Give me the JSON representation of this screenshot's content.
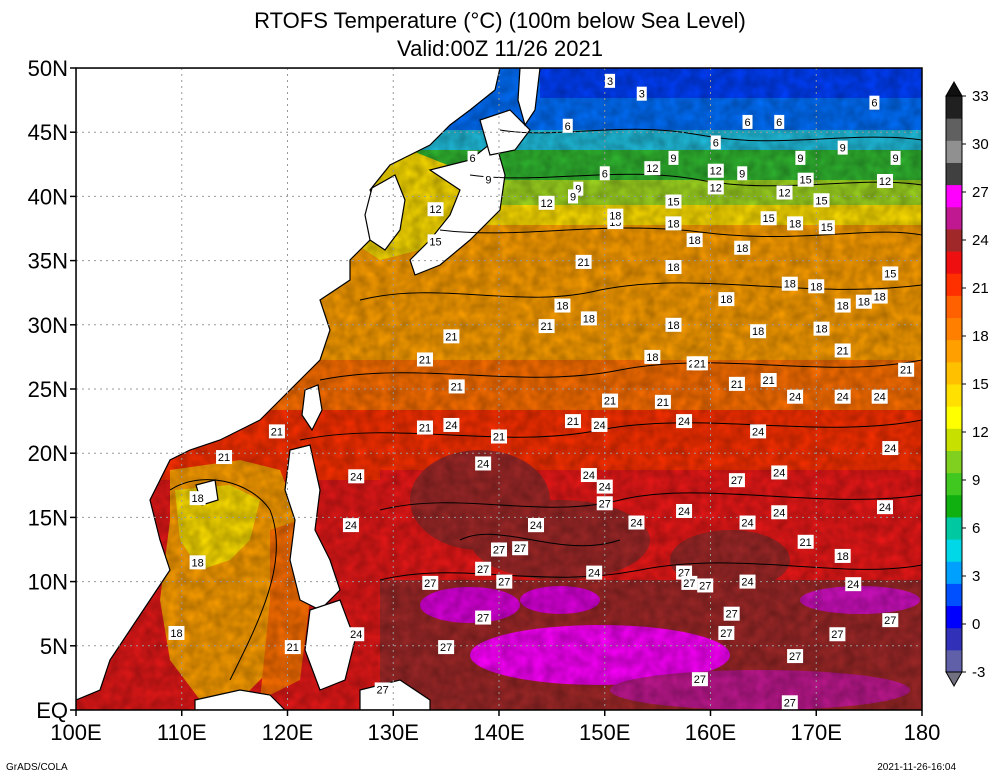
{
  "title": {
    "line1": "RTOFS Temperature (°C) (100m below Sea Level)",
    "line2": "Valid:00Z 11/26 2021"
  },
  "footer": {
    "left": "GrADS/COLA",
    "right": "2021-11-26-16:04"
  },
  "map": {
    "lat_range": [
      0,
      50
    ],
    "lon_range": [
      100,
      180
    ],
    "lat_ticks": [
      "EQ",
      "5N",
      "10N",
      "15N",
      "20N",
      "25N",
      "30N",
      "35N",
      "40N",
      "45N",
      "50N"
    ],
    "lon_ticks": [
      "100E",
      "110E",
      "120E",
      "130E",
      "140E",
      "150E",
      "160E",
      "170E",
      "180"
    ],
    "grid": true,
    "land_color": "#ffffff"
  },
  "colorbar": {
    "labels": [
      "-3",
      "0",
      "3",
      "6",
      "9",
      "12",
      "15",
      "18",
      "21",
      "24",
      "27",
      "30",
      "33"
    ],
    "colors": [
      "#6060a8",
      "#3030b8",
      "#0000ff",
      "#0050ff",
      "#00a0ff",
      "#00d8e8",
      "#00c8a0",
      "#10b010",
      "#40c820",
      "#80d020",
      "#c8e000",
      "#ffff00",
      "#ffe000",
      "#ffc000",
      "#ffa000",
      "#ff8000",
      "#ff6000",
      "#ff3000",
      "#ee1010",
      "#a02828",
      "#c01890",
      "#ff00ff",
      "#404040",
      "#909090",
      "#606060",
      "#202020"
    ]
  },
  "contour_labels": [
    {
      "text": "3",
      "lon": 150.5,
      "lat": 49.0
    },
    {
      "text": "3",
      "lon": 153.5,
      "lat": 48.0
    },
    {
      "text": "6",
      "lon": 146.5,
      "lat": 45.5
    },
    {
      "text": "6",
      "lon": 160.5,
      "lat": 44.2
    },
    {
      "text": "6",
      "lon": 163.5,
      "lat": 45.8
    },
    {
      "text": "6",
      "lon": 166.5,
      "lat": 45.8
    },
    {
      "text": "6",
      "lon": 175.5,
      "lat": 47.3
    },
    {
      "text": "6",
      "lon": 137.5,
      "lat": 43.0
    },
    {
      "text": "6",
      "lon": 150.0,
      "lat": 41.8
    },
    {
      "text": "9",
      "lon": 139.0,
      "lat": 41.3
    },
    {
      "text": "9",
      "lon": 156.5,
      "lat": 43.0
    },
    {
      "text": "9",
      "lon": 163.0,
      "lat": 41.8
    },
    {
      "text": "9",
      "lon": 168.5,
      "lat": 43.0
    },
    {
      "text": "9",
      "lon": 172.5,
      "lat": 43.8
    },
    {
      "text": "9",
      "lon": 177.5,
      "lat": 43.0
    },
    {
      "text": "9",
      "lon": 147.5,
      "lat": 40.6
    },
    {
      "text": "9",
      "lon": 147.0,
      "lat": 40.0
    },
    {
      "text": "12",
      "lon": 134.0,
      "lat": 39.0
    },
    {
      "text": "12",
      "lon": 144.5,
      "lat": 39.5
    },
    {
      "text": "12",
      "lon": 154.5,
      "lat": 42.2
    },
    {
      "text": "12",
      "lon": 160.5,
      "lat": 42.0
    },
    {
      "text": "12",
      "lon": 160.5,
      "lat": 40.7
    },
    {
      "text": "12",
      "lon": 167.0,
      "lat": 40.3
    },
    {
      "text": "12",
      "lon": 176.5,
      "lat": 41.2
    },
    {
      "text": "15",
      "lon": 134.0,
      "lat": 36.5
    },
    {
      "text": "15",
      "lon": 151.0,
      "lat": 38.0
    },
    {
      "text": "15",
      "lon": 156.5,
      "lat": 39.6
    },
    {
      "text": "15",
      "lon": 165.5,
      "lat": 38.3
    },
    {
      "text": "15",
      "lon": 169.0,
      "lat": 41.3
    },
    {
      "text": "15",
      "lon": 170.5,
      "lat": 39.7
    },
    {
      "text": "15",
      "lon": 171.0,
      "lat": 37.6
    },
    {
      "text": "15",
      "lon": 177.0,
      "lat": 34.0
    },
    {
      "text": "18",
      "lon": 151.0,
      "lat": 38.5
    },
    {
      "text": "18",
      "lon": 156.5,
      "lat": 37.9
    },
    {
      "text": "18",
      "lon": 158.5,
      "lat": 36.6
    },
    {
      "text": "18",
      "lon": 163.0,
      "lat": 36.0
    },
    {
      "text": "18",
      "lon": 168.0,
      "lat": 37.9
    },
    {
      "text": "18",
      "lon": 156.5,
      "lat": 34.5
    },
    {
      "text": "18",
      "lon": 167.5,
      "lat": 33.2
    },
    {
      "text": "18",
      "lon": 170.0,
      "lat": 33.0
    },
    {
      "text": "18",
      "lon": 161.5,
      "lat": 32.0
    },
    {
      "text": "18",
      "lon": 172.5,
      "lat": 31.5
    },
    {
      "text": "18",
      "lon": 174.5,
      "lat": 31.8
    },
    {
      "text": "18",
      "lon": 176.0,
      "lat": 32.2
    },
    {
      "text": "18",
      "lon": 146.0,
      "lat": 31.5
    },
    {
      "text": "18",
      "lon": 148.5,
      "lat": 30.5
    },
    {
      "text": "18",
      "lon": 156.5,
      "lat": 30.0
    },
    {
      "text": "18",
      "lon": 164.5,
      "lat": 29.5
    },
    {
      "text": "18",
      "lon": 170.5,
      "lat": 29.7
    },
    {
      "text": "18",
      "lon": 154.5,
      "lat": 27.5
    },
    {
      "text": "18",
      "lon": 111.5,
      "lat": 16.5
    },
    {
      "text": "18",
      "lon": 111.5,
      "lat": 11.5
    },
    {
      "text": "18",
      "lon": 109.5,
      "lat": 6.0
    },
    {
      "text": "18",
      "lon": 172.5,
      "lat": 12.0
    },
    {
      "text": "21",
      "lon": 148.0,
      "lat": 34.9
    },
    {
      "text": "21",
      "lon": 144.5,
      "lat": 29.9
    },
    {
      "text": "21",
      "lon": 135.5,
      "lat": 29.1
    },
    {
      "text": "21",
      "lon": 133.0,
      "lat": 27.3
    },
    {
      "text": "21",
      "lon": 136.0,
      "lat": 25.2
    },
    {
      "text": "21",
      "lon": 158.5,
      "lat": 27.0
    },
    {
      "text": "21",
      "lon": 159.0,
      "lat": 27.0
    },
    {
      "text": "21",
      "lon": 162.5,
      "lat": 25.4
    },
    {
      "text": "21",
      "lon": 165.5,
      "lat": 25.7
    },
    {
      "text": "21",
      "lon": 172.5,
      "lat": 28.0
    },
    {
      "text": "21",
      "lon": 178.5,
      "lat": 26.5
    },
    {
      "text": "21",
      "lon": 150.5,
      "lat": 24.1
    },
    {
      "text": "21",
      "lon": 155.5,
      "lat": 24.0
    },
    {
      "text": "21",
      "lon": 133.0,
      "lat": 22.0
    },
    {
      "text": "21",
      "lon": 147.0,
      "lat": 22.5
    },
    {
      "text": "21",
      "lon": 140.0,
      "lat": 21.3
    },
    {
      "text": "21",
      "lon": 119.0,
      "lat": 21.7
    },
    {
      "text": "21",
      "lon": 114.0,
      "lat": 19.7
    },
    {
      "text": "21",
      "lon": 169.0,
      "lat": 13.1
    },
    {
      "text": "21",
      "lon": 120.5,
      "lat": 4.9
    },
    {
      "text": "24",
      "lon": 135.5,
      "lat": 22.2
    },
    {
      "text": "24",
      "lon": 149.5,
      "lat": 22.2
    },
    {
      "text": "24",
      "lon": 157.5,
      "lat": 22.5
    },
    {
      "text": "24",
      "lon": 164.5,
      "lat": 21.7
    },
    {
      "text": "24",
      "lon": 172.5,
      "lat": 24.4
    },
    {
      "text": "24",
      "lon": 176.0,
      "lat": 24.4
    },
    {
      "text": "24",
      "lon": 168.0,
      "lat": 24.4
    },
    {
      "text": "24",
      "lon": 177.0,
      "lat": 20.4
    },
    {
      "text": "24",
      "lon": 138.5,
      "lat": 19.2
    },
    {
      "text": "24",
      "lon": 126.5,
      "lat": 18.2
    },
    {
      "text": "24",
      "lon": 148.5,
      "lat": 18.3
    },
    {
      "text": "24",
      "lon": 166.5,
      "lat": 18.5
    },
    {
      "text": "24",
      "lon": 150.0,
      "lat": 17.4
    },
    {
      "text": "24",
      "lon": 176.5,
      "lat": 15.8
    },
    {
      "text": "24",
      "lon": 166.5,
      "lat": 15.4
    },
    {
      "text": "24",
      "lon": 153.0,
      "lat": 14.6
    },
    {
      "text": "24",
      "lon": 157.5,
      "lat": 15.5
    },
    {
      "text": "24",
      "lon": 163.5,
      "lat": 14.6
    },
    {
      "text": "24",
      "lon": 126.0,
      "lat": 14.4
    },
    {
      "text": "24",
      "lon": 143.5,
      "lat": 14.4
    },
    {
      "text": "24",
      "lon": 143.5,
      "lat": 14.4
    },
    {
      "text": "24",
      "lon": 149.0,
      "lat": 10.7
    },
    {
      "text": "24",
      "lon": 163.5,
      "lat": 10.0
    },
    {
      "text": "24",
      "lon": 173.5,
      "lat": 9.8
    },
    {
      "text": "24",
      "lon": 126.5,
      "lat": 5.9
    },
    {
      "text": "27",
      "lon": 162.5,
      "lat": 17.9
    },
    {
      "text": "27",
      "lon": 150.0,
      "lat": 16.1
    },
    {
      "text": "27",
      "lon": 140.0,
      "lat": 12.5
    },
    {
      "text": "27",
      "lon": 142.0,
      "lat": 12.6
    },
    {
      "text": "27",
      "lon": 138.5,
      "lat": 11.0
    },
    {
      "text": "27",
      "lon": 140.5,
      "lat": 10.0
    },
    {
      "text": "27",
      "lon": 157.5,
      "lat": 10.7
    },
    {
      "text": "27",
      "lon": 158.0,
      "lat": 9.9
    },
    {
      "text": "27",
      "lon": 159.5,
      "lat": 9.7
    },
    {
      "text": "27",
      "lon": 133.5,
      "lat": 9.9
    },
    {
      "text": "27",
      "lon": 162.0,
      "lat": 7.5
    },
    {
      "text": "27",
      "lon": 138.5,
      "lat": 7.2
    },
    {
      "text": "27",
      "lon": 177.0,
      "lat": 7.0
    },
    {
      "text": "27",
      "lon": 161.5,
      "lat": 6.0
    },
    {
      "text": "27",
      "lon": 172.0,
      "lat": 5.9
    },
    {
      "text": "27",
      "lon": 135.0,
      "lat": 4.9
    },
    {
      "text": "27",
      "lon": 168.0,
      "lat": 4.2
    },
    {
      "text": "27",
      "lon": 159.0,
      "lat": 2.4
    },
    {
      "text": "27",
      "lon": 129.0,
      "lat": 1.6
    },
    {
      "text": "27",
      "lon": 167.5,
      "lat": 0.6
    }
  ]
}
